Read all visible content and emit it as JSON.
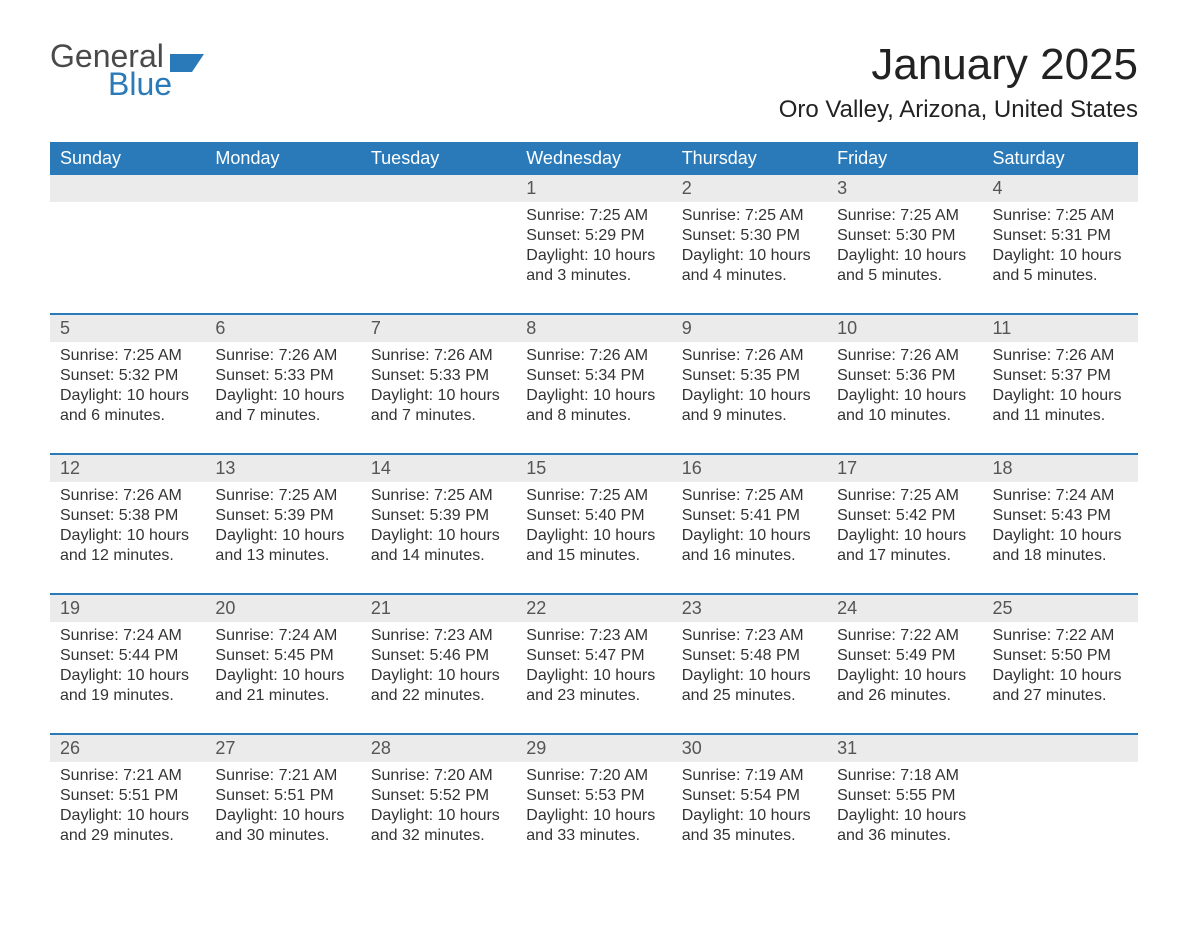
{
  "brand": {
    "word1": "General",
    "word2": "Blue"
  },
  "title": "January 2025",
  "location": "Oro Valley, Arizona, United States",
  "colors": {
    "header_bg": "#2a7ab9",
    "band_bg": "#ebebeb",
    "text": "#333333",
    "page_bg": "#ffffff"
  },
  "day_names": [
    "Sunday",
    "Monday",
    "Tuesday",
    "Wednesday",
    "Thursday",
    "Friday",
    "Saturday"
  ],
  "weeks": [
    [
      null,
      null,
      null,
      {
        "n": "1",
        "sr": "Sunrise: 7:25 AM",
        "ss": "Sunset: 5:29 PM",
        "d1": "Daylight: 10 hours",
        "d2": "and 3 minutes."
      },
      {
        "n": "2",
        "sr": "Sunrise: 7:25 AM",
        "ss": "Sunset: 5:30 PM",
        "d1": "Daylight: 10 hours",
        "d2": "and 4 minutes."
      },
      {
        "n": "3",
        "sr": "Sunrise: 7:25 AM",
        "ss": "Sunset: 5:30 PM",
        "d1": "Daylight: 10 hours",
        "d2": "and 5 minutes."
      },
      {
        "n": "4",
        "sr": "Sunrise: 7:25 AM",
        "ss": "Sunset: 5:31 PM",
        "d1": "Daylight: 10 hours",
        "d2": "and 5 minutes."
      }
    ],
    [
      {
        "n": "5",
        "sr": "Sunrise: 7:25 AM",
        "ss": "Sunset: 5:32 PM",
        "d1": "Daylight: 10 hours",
        "d2": "and 6 minutes."
      },
      {
        "n": "6",
        "sr": "Sunrise: 7:26 AM",
        "ss": "Sunset: 5:33 PM",
        "d1": "Daylight: 10 hours",
        "d2": "and 7 minutes."
      },
      {
        "n": "7",
        "sr": "Sunrise: 7:26 AM",
        "ss": "Sunset: 5:33 PM",
        "d1": "Daylight: 10 hours",
        "d2": "and 7 minutes."
      },
      {
        "n": "8",
        "sr": "Sunrise: 7:26 AM",
        "ss": "Sunset: 5:34 PM",
        "d1": "Daylight: 10 hours",
        "d2": "and 8 minutes."
      },
      {
        "n": "9",
        "sr": "Sunrise: 7:26 AM",
        "ss": "Sunset: 5:35 PM",
        "d1": "Daylight: 10 hours",
        "d2": "and 9 minutes."
      },
      {
        "n": "10",
        "sr": "Sunrise: 7:26 AM",
        "ss": "Sunset: 5:36 PM",
        "d1": "Daylight: 10 hours",
        "d2": "and 10 minutes."
      },
      {
        "n": "11",
        "sr": "Sunrise: 7:26 AM",
        "ss": "Sunset: 5:37 PM",
        "d1": "Daylight: 10 hours",
        "d2": "and 11 minutes."
      }
    ],
    [
      {
        "n": "12",
        "sr": "Sunrise: 7:26 AM",
        "ss": "Sunset: 5:38 PM",
        "d1": "Daylight: 10 hours",
        "d2": "and 12 minutes."
      },
      {
        "n": "13",
        "sr": "Sunrise: 7:25 AM",
        "ss": "Sunset: 5:39 PM",
        "d1": "Daylight: 10 hours",
        "d2": "and 13 minutes."
      },
      {
        "n": "14",
        "sr": "Sunrise: 7:25 AM",
        "ss": "Sunset: 5:39 PM",
        "d1": "Daylight: 10 hours",
        "d2": "and 14 minutes."
      },
      {
        "n": "15",
        "sr": "Sunrise: 7:25 AM",
        "ss": "Sunset: 5:40 PM",
        "d1": "Daylight: 10 hours",
        "d2": "and 15 minutes."
      },
      {
        "n": "16",
        "sr": "Sunrise: 7:25 AM",
        "ss": "Sunset: 5:41 PM",
        "d1": "Daylight: 10 hours",
        "d2": "and 16 minutes."
      },
      {
        "n": "17",
        "sr": "Sunrise: 7:25 AM",
        "ss": "Sunset: 5:42 PM",
        "d1": "Daylight: 10 hours",
        "d2": "and 17 minutes."
      },
      {
        "n": "18",
        "sr": "Sunrise: 7:24 AM",
        "ss": "Sunset: 5:43 PM",
        "d1": "Daylight: 10 hours",
        "d2": "and 18 minutes."
      }
    ],
    [
      {
        "n": "19",
        "sr": "Sunrise: 7:24 AM",
        "ss": "Sunset: 5:44 PM",
        "d1": "Daylight: 10 hours",
        "d2": "and 19 minutes."
      },
      {
        "n": "20",
        "sr": "Sunrise: 7:24 AM",
        "ss": "Sunset: 5:45 PM",
        "d1": "Daylight: 10 hours",
        "d2": "and 21 minutes."
      },
      {
        "n": "21",
        "sr": "Sunrise: 7:23 AM",
        "ss": "Sunset: 5:46 PM",
        "d1": "Daylight: 10 hours",
        "d2": "and 22 minutes."
      },
      {
        "n": "22",
        "sr": "Sunrise: 7:23 AM",
        "ss": "Sunset: 5:47 PM",
        "d1": "Daylight: 10 hours",
        "d2": "and 23 minutes."
      },
      {
        "n": "23",
        "sr": "Sunrise: 7:23 AM",
        "ss": "Sunset: 5:48 PM",
        "d1": "Daylight: 10 hours",
        "d2": "and 25 minutes."
      },
      {
        "n": "24",
        "sr": "Sunrise: 7:22 AM",
        "ss": "Sunset: 5:49 PM",
        "d1": "Daylight: 10 hours",
        "d2": "and 26 minutes."
      },
      {
        "n": "25",
        "sr": "Sunrise: 7:22 AM",
        "ss": "Sunset: 5:50 PM",
        "d1": "Daylight: 10 hours",
        "d2": "and 27 minutes."
      }
    ],
    [
      {
        "n": "26",
        "sr": "Sunrise: 7:21 AM",
        "ss": "Sunset: 5:51 PM",
        "d1": "Daylight: 10 hours",
        "d2": "and 29 minutes."
      },
      {
        "n": "27",
        "sr": "Sunrise: 7:21 AM",
        "ss": "Sunset: 5:51 PM",
        "d1": "Daylight: 10 hours",
        "d2": "and 30 minutes."
      },
      {
        "n": "28",
        "sr": "Sunrise: 7:20 AM",
        "ss": "Sunset: 5:52 PM",
        "d1": "Daylight: 10 hours",
        "d2": "and 32 minutes."
      },
      {
        "n": "29",
        "sr": "Sunrise: 7:20 AM",
        "ss": "Sunset: 5:53 PM",
        "d1": "Daylight: 10 hours",
        "d2": "and 33 minutes."
      },
      {
        "n": "30",
        "sr": "Sunrise: 7:19 AM",
        "ss": "Sunset: 5:54 PM",
        "d1": "Daylight: 10 hours",
        "d2": "and 35 minutes."
      },
      {
        "n": "31",
        "sr": "Sunrise: 7:18 AM",
        "ss": "Sunset: 5:55 PM",
        "d1": "Daylight: 10 hours",
        "d2": "and 36 minutes."
      },
      null
    ]
  ]
}
